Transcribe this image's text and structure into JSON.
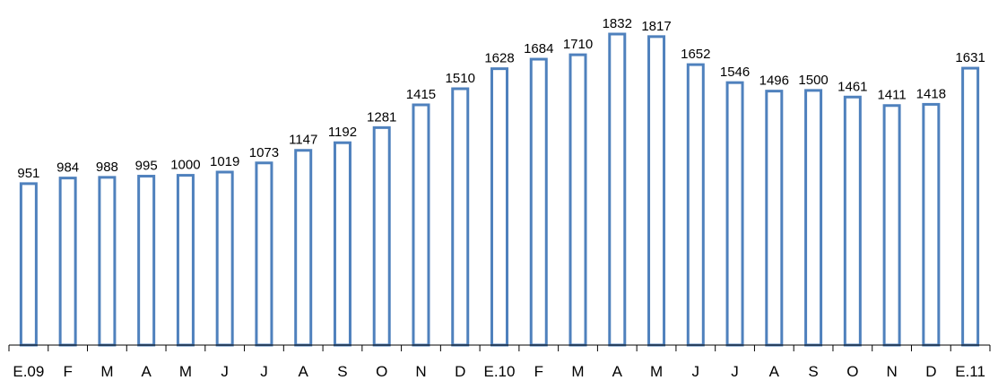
{
  "chart_data": {
    "type": "bar",
    "title": "",
    "xlabel": "",
    "ylabel": "",
    "categories": [
      "E.09",
      "F",
      "M",
      "A",
      "M",
      "J",
      "J",
      "A",
      "S",
      "O",
      "N",
      "D",
      "E.10",
      "F",
      "M",
      "A",
      "M",
      "J",
      "J",
      "A",
      "S",
      "O",
      "N",
      "D",
      "E.11"
    ],
    "values": [
      951,
      984,
      988,
      995,
      1000,
      1019,
      1073,
      1147,
      1192,
      1281,
      1415,
      1510,
      1628,
      1684,
      1710,
      1832,
      1817,
      1652,
      1546,
      1496,
      1500,
      1461,
      1411,
      1418,
      1631
    ],
    "ylim": [
      0,
      1920
    ],
    "grid": false,
    "legend": "none",
    "data_labels": true,
    "colors": {
      "bar_stroke": "#4F81BD",
      "bar_fill": "#FFFFFF",
      "axis": "#000000",
      "text": "#000000"
    }
  }
}
